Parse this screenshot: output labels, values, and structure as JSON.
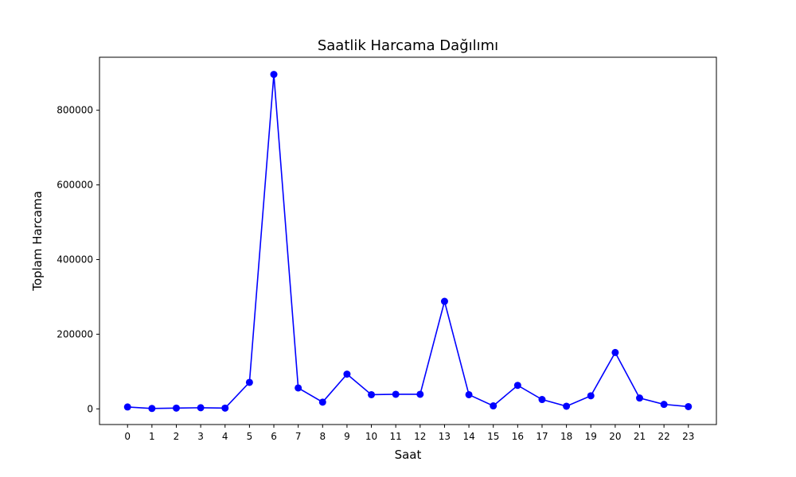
{
  "chart_data": {
    "type": "line",
    "title": "Saatlik Harcama Dağılımı",
    "xlabel": "Saat",
    "ylabel": "Toplam Harcama",
    "x": [
      0,
      1,
      2,
      3,
      4,
      5,
      6,
      7,
      8,
      9,
      10,
      11,
      12,
      13,
      14,
      15,
      16,
      17,
      18,
      19,
      20,
      21,
      22,
      23
    ],
    "x_tick_labels": [
      "0",
      "1",
      "2",
      "3",
      "4",
      "5",
      "6",
      "7",
      "8",
      "9",
      "10",
      "11",
      "12",
      "13",
      "14",
      "15",
      "16",
      "17",
      "18",
      "19",
      "20",
      "21",
      "22",
      "23"
    ],
    "series": [
      {
        "values": [
          5000,
          1000,
          2000,
          3000,
          2000,
          71000,
          896000,
          56000,
          18000,
          93000,
          38000,
          39000,
          39000,
          288000,
          38000,
          8000,
          63000,
          25000,
          7000,
          35000,
          151000,
          29000,
          12000,
          6000
        ],
        "color": "#0000ff",
        "marker": "circle"
      }
    ],
    "y_ticks": [
      0,
      200000,
      400000,
      600000,
      800000
    ],
    "y_tick_labels": [
      "0",
      "200000",
      "400000",
      "600000",
      "800000"
    ],
    "ylim": [
      -42000,
      942000
    ],
    "xlim": [
      -1.15,
      24.15
    ],
    "grid": false,
    "legend": "none"
  }
}
